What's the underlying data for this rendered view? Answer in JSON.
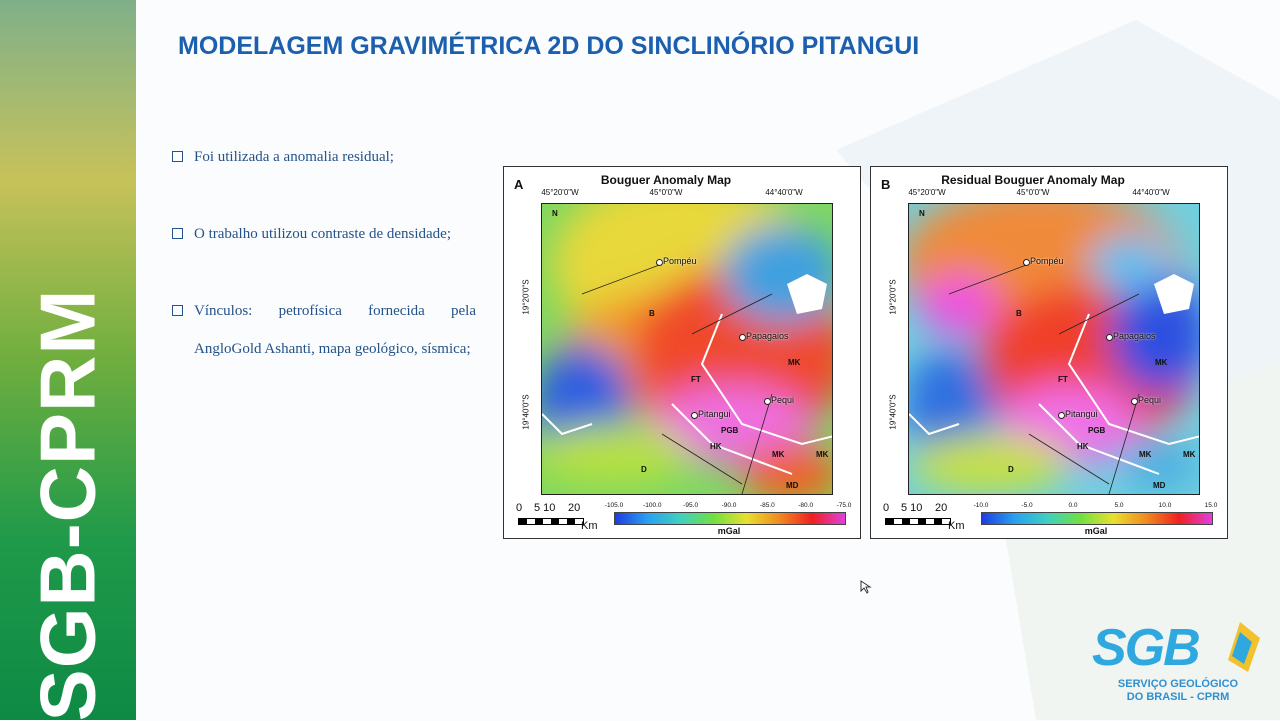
{
  "header": {
    "title": "MODELAGEM GRAVIMÉTRICA 2D DO SINCLINÓRIO PITANGUI"
  },
  "bullets": [
    "Foi utilizada a anomalia residual;",
    "O trabalho utilizou contraste de densidade;",
    "Vínculos: petrofísica fornecida pela AngloGold Ashanti, mapa geológico, sísmica;"
  ],
  "sidebar": {
    "text": "SGB-CPRM"
  },
  "logo": {
    "mark": "SGB",
    "line1": "SERVIÇO GEOLÓGICO",
    "line2": "DO BRASIL - CPRM"
  },
  "figure": {
    "panels": [
      {
        "letter": "A",
        "title": "Bouguer Anomaly Map",
        "lon_labels": [
          "45°20'0\"W",
          "45°0'0\"W",
          "44°40'0\"W"
        ],
        "lat_labels": [
          "19°20'0\"S",
          "19°40'0\"S"
        ],
        "north": "N",
        "places": [
          "Pompéu",
          "Papagaios",
          "Pequi",
          "Pitangui"
        ],
        "regions": [
          "B",
          "FT",
          "PGB",
          "MK",
          "MK",
          "MK",
          "D",
          "MD",
          "HK"
        ],
        "scale_labels": [
          "0",
          "5 10",
          "20"
        ],
        "scale_unit": "Km",
        "colorbar_ticks": [
          "-105.0",
          "-100.0",
          "-95.0",
          "-90.0",
          "-85.0",
          "-80.0",
          "-75.0"
        ],
        "colorbar_unit": "mGal"
      },
      {
        "letter": "B",
        "title": "Residual Bouguer Anomaly Map",
        "lon_labels": [
          "45°20'0\"W",
          "45°0'0\"W",
          "44°40'0\"W"
        ],
        "lat_labels": [
          "19°20'0\"S",
          "19°40'0\"S"
        ],
        "north": "N",
        "places": [
          "Pompéu",
          "Papagaios",
          "Pequi",
          "Pitangui"
        ],
        "regions": [
          "B",
          "FT",
          "PGB",
          "MK",
          "MK",
          "MK",
          "D",
          "MD",
          "HK"
        ],
        "scale_labels": [
          "0",
          "5 10",
          "20"
        ],
        "scale_unit": "Km",
        "colorbar_ticks": [
          "-10.0",
          "-5.0",
          "0.0",
          "5.0",
          "10.0",
          "15.0"
        ],
        "colorbar_unit": "mGal"
      }
    ]
  }
}
